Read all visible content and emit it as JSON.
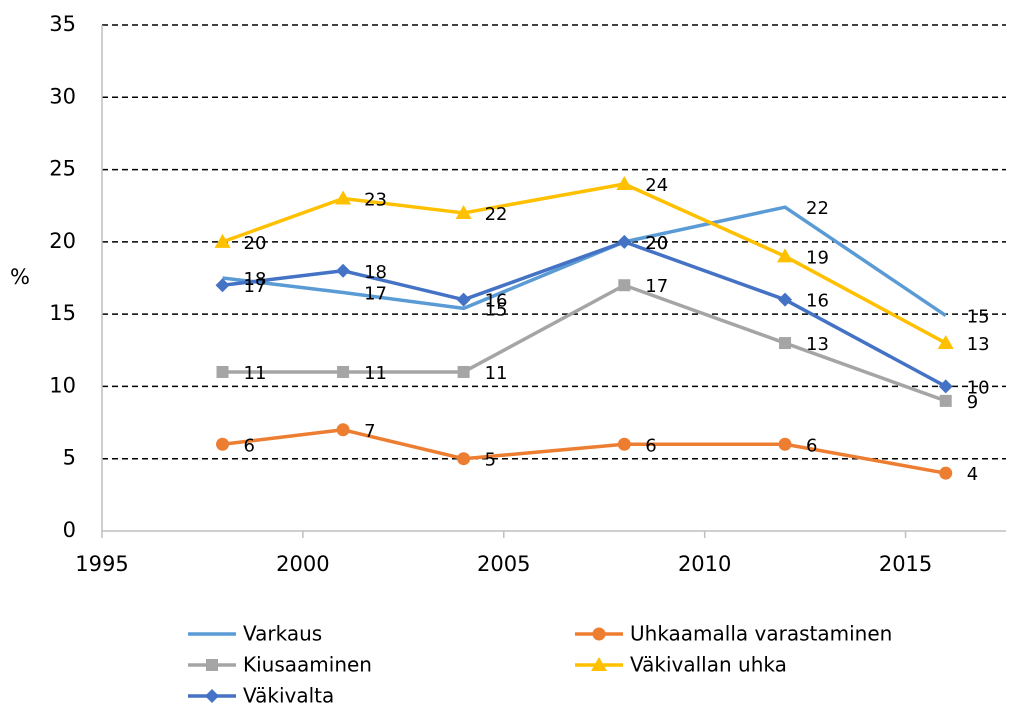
{
  "chart_data": {
    "type": "line",
    "ylabel": "%",
    "x": [
      1998,
      2001,
      2004,
      2008,
      2012,
      2016
    ],
    "xlim": [
      1995,
      2017.5
    ],
    "xticks": [
      1995,
      2000,
      2005,
      2010,
      2015
    ],
    "ylim": [
      0,
      35
    ],
    "yticks": [
      0,
      5,
      10,
      15,
      20,
      25,
      30,
      35
    ],
    "grid": true,
    "legend": "bottom",
    "series": [
      {
        "name": "Varkaus",
        "color": "#5b9bd5",
        "marker": "none",
        "values": [
          17.5,
          16.5,
          15.4,
          20,
          22.4,
          14.9
        ],
        "value_labels": [
          "18",
          "17",
          "15",
          "20",
          "22",
          "15"
        ]
      },
      {
        "name": "Uhkaamalla varastaminen",
        "color": "#ed7d31",
        "marker": "circle",
        "values": [
          6,
          7,
          5,
          6,
          6,
          4
        ]
      },
      {
        "name": "Kiusaaminen",
        "color": "#a5a5a5",
        "marker": "square",
        "values": [
          11,
          11,
          11,
          17,
          13,
          9
        ]
      },
      {
        "name": "Väkivallan uhka",
        "color": "#ffc000",
        "marker": "triangle",
        "values": [
          20,
          23,
          22,
          24,
          19,
          13
        ]
      },
      {
        "name": "Väkivalta",
        "color": "#4472c4",
        "marker": "diamond",
        "values": [
          17,
          18,
          16,
          20,
          16,
          10
        ]
      }
    ]
  }
}
